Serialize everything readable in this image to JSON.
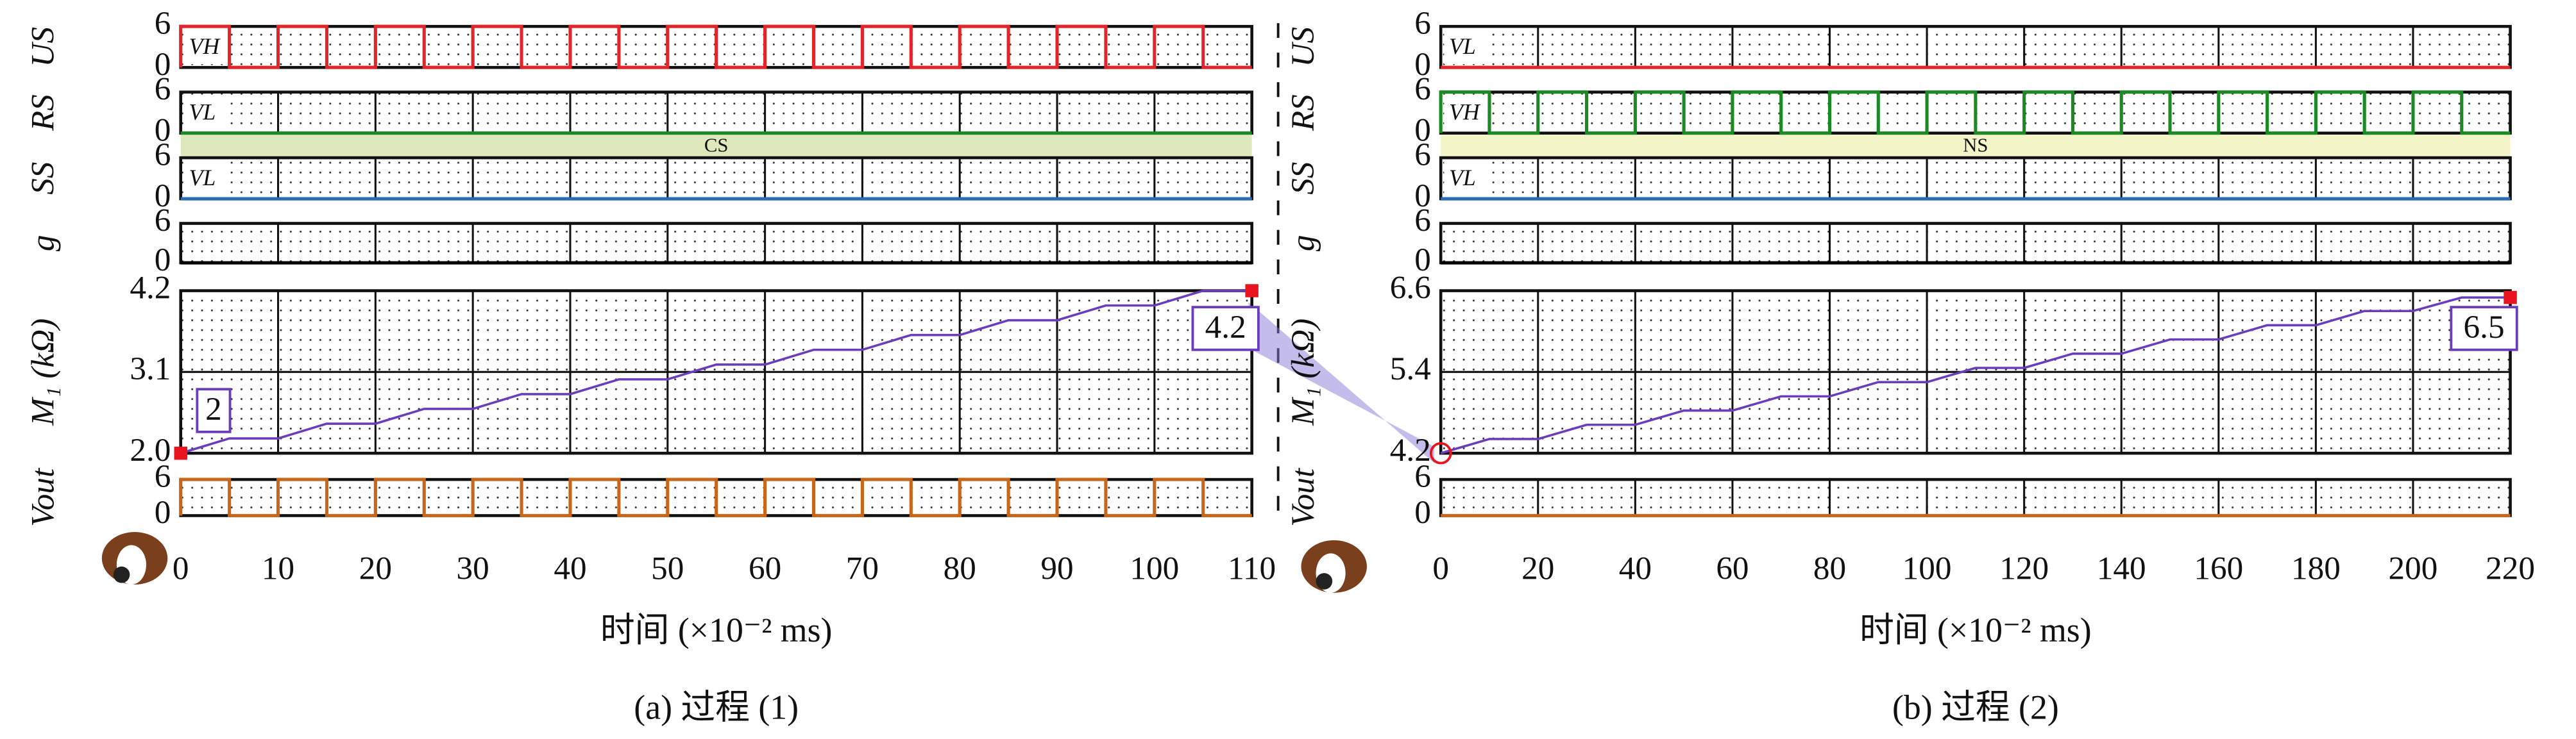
{
  "chart_data": [
    {
      "type": "line",
      "caption": "(a) 过程 (1)",
      "xlabel": "时间 (×10⁻² ms)",
      "xlim": [
        0,
        110
      ],
      "xticks": [
        0,
        10,
        20,
        30,
        40,
        50,
        60,
        70,
        80,
        90,
        100,
        110
      ],
      "band": {
        "label": "CS",
        "color": "#dde8bd"
      },
      "panels": [
        {
          "ylabel": "US",
          "label": "VH",
          "ylim": [
            0,
            6
          ],
          "yticks": [
            0,
            6
          ],
          "series": [
            {
              "color": "#e0262b",
              "x": [
                0,
                0,
                5,
                5,
                10,
                10,
                15,
                15,
                20,
                20,
                25,
                25,
                30,
                30,
                35,
                35,
                40,
                40,
                45,
                45,
                50,
                50,
                55,
                55,
                60,
                60,
                65,
                65,
                70,
                70,
                75,
                75,
                80,
                80,
                85,
                85,
                90,
                90,
                95,
                95,
                100,
                100,
                105,
                105,
                110
              ],
              "values": [
                0,
                6,
                6,
                0,
                0,
                6,
                6,
                0,
                0,
                6,
                6,
                0,
                0,
                6,
                6,
                0,
                0,
                6,
                6,
                0,
                0,
                6,
                6,
                0,
                0,
                6,
                6,
                0,
                0,
                6,
                6,
                0,
                0,
                6,
                6,
                0,
                0,
                6,
                6,
                0,
                0,
                6,
                6,
                0,
                0
              ]
            }
          ]
        },
        {
          "ylabel": "RS",
          "label": "VL",
          "ylim": [
            0,
            6
          ],
          "yticks": [
            0,
            6
          ],
          "series": [
            {
              "color": "#1c8a22",
              "x": [
                0,
                110
              ],
              "values": [
                0,
                0
              ]
            }
          ]
        },
        {
          "ylabel": "SS",
          "label": "VL",
          "ylim": [
            0,
            6
          ],
          "yticks": [
            0,
            6
          ],
          "series": [
            {
              "color": "#2a6db5",
              "x": [
                0,
                110
              ],
              "values": [
                0,
                0
              ]
            }
          ]
        },
        {
          "ylabel": "g",
          "ylim": [
            0,
            6
          ],
          "yticks": [
            0,
            6
          ],
          "series": [
            {
              "color": "#000000",
              "x": [
                0,
                110
              ],
              "values": [
                0,
                0
              ]
            }
          ]
        },
        {
          "ylabel": "M₁ (kΩ)",
          "ylim": [
            2,
            4.2
          ],
          "yticks": [
            {
              "value": 2,
              "label": "2.0"
            },
            3.1,
            4.2
          ],
          "markers": {
            "start": "square",
            "end": "square",
            "color": "#e8141e"
          },
          "annotations": [
            {
              "text": "2",
              "at": "start"
            },
            {
              "text": "4.2",
              "at": "end"
            }
          ],
          "series": [
            {
              "color": "#6a3dbd",
              "x": [
                0,
                5,
                10,
                15,
                20,
                25,
                30,
                35,
                40,
                45,
                50,
                55,
                60,
                65,
                70,
                75,
                80,
                85,
                90,
                95,
                100,
                105,
                110
              ],
              "values": [
                2,
                2.2,
                2.2,
                2.4,
                2.4,
                2.6,
                2.6,
                2.8,
                2.8,
                3.0,
                3.0,
                3.2,
                3.2,
                3.4,
                3.4,
                3.6,
                3.6,
                3.8,
                3.8,
                4.0,
                4.0,
                4.2,
                4.2
              ]
            }
          ]
        },
        {
          "ylabel": "Vout",
          "ylim": [
            0,
            6
          ],
          "yticks": [
            0,
            6
          ],
          "series": [
            {
              "color": "#c8661a",
              "x": [
                0,
                0,
                5,
                5,
                10,
                10,
                15,
                15,
                20,
                20,
                25,
                25,
                30,
                30,
                35,
                35,
                40,
                40,
                45,
                45,
                50,
                50,
                55,
                55,
                60,
                60,
                65,
                65,
                70,
                70,
                75,
                75,
                80,
                80,
                85,
                85,
                90,
                90,
                95,
                95,
                100,
                100,
                105,
                105,
                110
              ],
              "values": [
                0,
                6,
                6,
                0,
                0,
                6,
                6,
                0,
                0,
                6,
                6,
                0,
                0,
                6,
                6,
                0,
                0,
                6,
                6,
                0,
                0,
                6,
                6,
                0,
                0,
                6,
                6,
                0,
                0,
                6,
                6,
                0,
                0,
                6,
                6,
                0,
                0,
                6,
                6,
                0,
                0,
                6,
                6,
                0,
                0
              ]
            }
          ]
        }
      ]
    },
    {
      "type": "line",
      "caption": "(b) 过程 (2)",
      "xlabel": "时间 (×10⁻² ms)",
      "xlim": [
        0,
        220
      ],
      "xticks": [
        0,
        20,
        40,
        60,
        80,
        100,
        120,
        140,
        160,
        180,
        200,
        220
      ],
      "band": {
        "label": "NS",
        "color": "#f3f5c8"
      },
      "panels": [
        {
          "ylabel": "US",
          "label": "VL",
          "ylim": [
            0,
            6
          ],
          "yticks": [
            0,
            6
          ],
          "series": [
            {
              "color": "#e0262b",
              "x": [
                0,
                220
              ],
              "values": [
                0,
                0
              ]
            }
          ]
        },
        {
          "ylabel": "RS",
          "label": "VH",
          "ylim": [
            0,
            6
          ],
          "yticks": [
            0,
            6
          ],
          "series": [
            {
              "color": "#1c8a22",
              "x": [
                0,
                0,
                10,
                10,
                20,
                20,
                30,
                30,
                40,
                40,
                50,
                50,
                60,
                60,
                70,
                70,
                80,
                80,
                90,
                90,
                100,
                100,
                110,
                110,
                120,
                120,
                130,
                130,
                140,
                140,
                150,
                150,
                160,
                160,
                170,
                170,
                180,
                180,
                190,
                190,
                200,
                200,
                210,
                210,
                220
              ],
              "values": [
                0,
                6,
                6,
                0,
                0,
                6,
                6,
                0,
                0,
                6,
                6,
                0,
                0,
                6,
                6,
                0,
                0,
                6,
                6,
                0,
                0,
                6,
                6,
                0,
                0,
                6,
                6,
                0,
                0,
                6,
                6,
                0,
                0,
                6,
                6,
                0,
                0,
                6,
                6,
                0,
                0,
                6,
                6,
                0,
                0
              ]
            }
          ]
        },
        {
          "ylabel": "SS",
          "label": "VL",
          "ylim": [
            0,
            6
          ],
          "yticks": [
            0,
            6
          ],
          "series": [
            {
              "color": "#2a6db5",
              "x": [
                0,
                220
              ],
              "values": [
                0,
                0
              ]
            }
          ]
        },
        {
          "ylabel": "g",
          "ylim": [
            0,
            6
          ],
          "yticks": [
            0,
            6
          ],
          "series": [
            {
              "color": "#000000",
              "x": [
                0,
                220
              ],
              "values": [
                0,
                0
              ]
            }
          ]
        },
        {
          "ylabel": "M₁ (kΩ)",
          "ylim": [
            4.2,
            6.6
          ],
          "yticks": [
            4.2,
            5.4,
            6.6
          ],
          "markers": {
            "start": "circle",
            "end": "square",
            "color": "#e8141e"
          },
          "annotations": [
            {
              "text": "6.5",
              "at": "end"
            }
          ],
          "series": [
            {
              "color": "#6a3dbd",
              "x": [
                0,
                10,
                20,
                30,
                40,
                50,
                60,
                70,
                80,
                90,
                100,
                110,
                120,
                130,
                140,
                150,
                160,
                170,
                180,
                190,
                200,
                210,
                220
              ],
              "values": [
                4.2,
                4.41,
                4.41,
                4.62,
                4.62,
                4.83,
                4.83,
                5.04,
                5.04,
                5.25,
                5.25,
                5.46,
                5.46,
                5.67,
                5.67,
                5.88,
                5.88,
                6.09,
                6.09,
                6.3,
                6.3,
                6.5,
                6.5
              ]
            }
          ]
        },
        {
          "ylabel": "Vout",
          "ylim": [
            0,
            6
          ],
          "yticks": [
            0,
            6
          ],
          "series": [
            {
              "color": "#c8661a",
              "x": [
                0,
                220
              ],
              "values": [
                0,
                0
              ]
            }
          ]
        }
      ]
    }
  ]
}
